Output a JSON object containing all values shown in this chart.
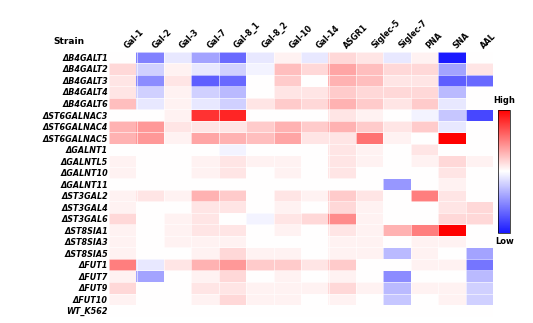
{
  "rows": [
    "ΔB4GALT1",
    "ΔB4GALT2",
    "ΔB4GALT3",
    "ΔB4GALT4",
    "ΔB4GALT6",
    "ΔST6GALNAC3",
    "ΔST6GALNAC4",
    "ΔST6GALNAC5",
    "ΔGALNT1",
    "ΔGALNTL5",
    "ΔGALNT10",
    "ΔGALNT11",
    "ΔST3GAL2",
    "ΔST3GAL4",
    "ΔST3GAL6",
    "ΔST8SIA1",
    "ΔST8SIA3",
    "ΔST8SIA5",
    "ΔFUT1",
    "ΔFUT7",
    "ΔFUT9",
    "ΔFUT10",
    "WT_K562"
  ],
  "cols": [
    "Gal-1",
    "Gal-2",
    "Gal-3",
    "Gal-7",
    "Gal-8_1",
    "Gal-8_2",
    "Gal-10",
    "Gal-14",
    "ASGR1",
    "Siglec-5",
    "Siglec-7",
    "PNA",
    "SNA",
    "AAL"
  ],
  "data": [
    [
      0.0,
      -0.55,
      -0.1,
      -0.4,
      -0.65,
      -0.1,
      0.05,
      -0.1,
      0.15,
      0.1,
      -0.1,
      0.05,
      -1.0,
      0.0
    ],
    [
      0.15,
      -0.2,
      0.05,
      -0.1,
      -0.2,
      -0.05,
      0.25,
      0.15,
      0.35,
      0.25,
      0.15,
      0.15,
      -0.4,
      0.1
    ],
    [
      0.1,
      -0.5,
      0.1,
      -0.7,
      -0.65,
      0.0,
      0.2,
      0.0,
      0.3,
      0.25,
      0.1,
      0.1,
      -0.7,
      -0.65
    ],
    [
      0.1,
      -0.2,
      0.05,
      -0.2,
      -0.3,
      0.0,
      0.1,
      0.1,
      0.2,
      0.15,
      0.15,
      0.15,
      -0.3,
      0.0
    ],
    [
      0.25,
      -0.1,
      0.05,
      -0.1,
      -0.2,
      0.1,
      0.2,
      0.15,
      0.3,
      0.2,
      0.1,
      0.2,
      -0.1,
      0.0
    ],
    [
      0.0,
      0.0,
      0.05,
      0.8,
      0.85,
      0.0,
      0.0,
      0.0,
      0.1,
      0.05,
      0.0,
      -0.05,
      -0.25,
      -0.8
    ],
    [
      0.3,
      0.4,
      0.1,
      0.1,
      0.1,
      0.2,
      0.3,
      0.2,
      0.3,
      0.2,
      0.1,
      0.2,
      -0.1,
      0.0
    ],
    [
      0.3,
      0.4,
      0.05,
      0.35,
      0.3,
      0.25,
      0.35,
      0.1,
      0.1,
      0.55,
      0.05,
      0.0,
      1.0,
      0.0
    ],
    [
      0.0,
      0.0,
      0.0,
      0.0,
      -0.05,
      0.0,
      0.0,
      0.0,
      0.1,
      0.05,
      0.0,
      0.1,
      0.0,
      0.0
    ],
    [
      0.05,
      0.0,
      0.0,
      0.05,
      0.1,
      0.05,
      0.05,
      0.0,
      0.1,
      0.05,
      0.0,
      0.05,
      0.15,
      0.05
    ],
    [
      0.05,
      0.0,
      0.0,
      0.05,
      0.1,
      0.0,
      0.05,
      0.0,
      0.1,
      0.0,
      0.0,
      0.0,
      0.1,
      0.0
    ],
    [
      0.0,
      0.0,
      0.0,
      0.0,
      0.0,
      0.0,
      0.0,
      0.0,
      0.0,
      0.0,
      -0.45,
      0.0,
      0.05,
      0.0
    ],
    [
      0.05,
      0.1,
      0.05,
      0.3,
      0.2,
      0.0,
      0.1,
      0.05,
      0.2,
      0.1,
      0.0,
      0.5,
      0.1,
      0.0
    ],
    [
      0.05,
      0.0,
      0.0,
      0.1,
      0.1,
      0.0,
      0.05,
      0.0,
      0.15,
      0.05,
      0.0,
      0.0,
      0.1,
      0.15
    ],
    [
      0.15,
      0.0,
      0.05,
      0.1,
      0.0,
      -0.05,
      0.1,
      0.15,
      0.45,
      0.05,
      0.0,
      0.0,
      0.15,
      0.15
    ],
    [
      0.05,
      0.0,
      0.05,
      0.1,
      0.1,
      0.0,
      0.05,
      0.0,
      0.1,
      0.05,
      0.3,
      0.5,
      1.0,
      0.0
    ],
    [
      0.05,
      0.0,
      0.05,
      0.05,
      0.05,
      0.0,
      0.0,
      0.0,
      0.05,
      0.05,
      0.0,
      0.05,
      0.05,
      0.0
    ],
    [
      0.05,
      0.0,
      0.0,
      0.05,
      0.15,
      0.05,
      0.05,
      0.0,
      0.05,
      0.05,
      -0.3,
      0.05,
      0.0,
      -0.4
    ],
    [
      0.5,
      -0.1,
      0.1,
      0.3,
      0.4,
      0.2,
      0.2,
      0.1,
      0.2,
      0.0,
      0.0,
      0.05,
      0.05,
      -0.6
    ],
    [
      0.05,
      -0.4,
      0.0,
      0.05,
      0.15,
      0.0,
      0.05,
      0.0,
      0.05,
      0.0,
      -0.5,
      0.0,
      0.0,
      -0.3
    ],
    [
      0.15,
      0.0,
      0.0,
      0.1,
      0.1,
      0.05,
      0.05,
      0.05,
      0.15,
      0.05,
      -0.3,
      0.05,
      0.05,
      -0.2
    ],
    [
      0.05,
      0.0,
      0.0,
      0.05,
      0.15,
      0.05,
      0.05,
      0.0,
      0.05,
      0.0,
      -0.25,
      0.0,
      0.05,
      -0.2
    ],
    [
      0.0,
      0.0,
      0.0,
      0.0,
      0.0,
      0.0,
      0.0,
      0.0,
      0.0,
      0.0,
      0.0,
      0.0,
      0.0,
      0.0
    ]
  ],
  "vmin": -1.0,
  "vmax": 1.0,
  "cmap_low": "#1a1aff",
  "cmap_mid": "#ffffff",
  "cmap_high": "#ff0000",
  "colorbar_label_high": "High",
  "colorbar_label_low": "Low",
  "row_label_fontsize": 5.8,
  "col_label_fontsize": 5.8,
  "strain_label_fontsize": 6.5,
  "colorbar_label_fontsize": 6.0,
  "linewidth": 0.4
}
